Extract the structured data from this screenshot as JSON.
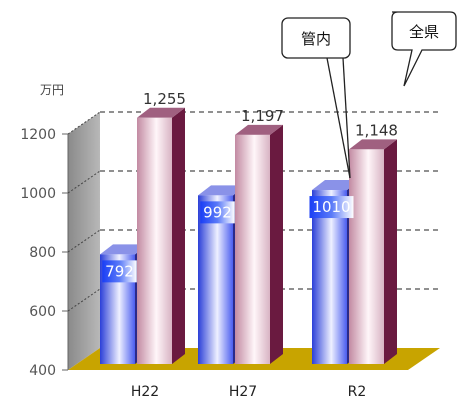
{
  "chart_data": {
    "type": "bar",
    "ylabel": "万円",
    "categories": [
      "H22",
      "H27",
      "R2"
    ],
    "ylim": [
      400,
      1200
    ],
    "yticks": [
      400,
      600,
      800,
      1000,
      1200
    ],
    "series": [
      {
        "name": "管内",
        "values": [
          792,
          992,
          1010
        ],
        "labels": [
          "792",
          "992",
          "1010"
        ],
        "color": "#4a6cf0"
      },
      {
        "name": "全県",
        "values": [
          1255,
          1197,
          1148
        ],
        "labels": [
          "1,255",
          "1,197",
          "1,148"
        ],
        "color": "#a0185a"
      }
    ],
    "legend": "callouts"
  }
}
